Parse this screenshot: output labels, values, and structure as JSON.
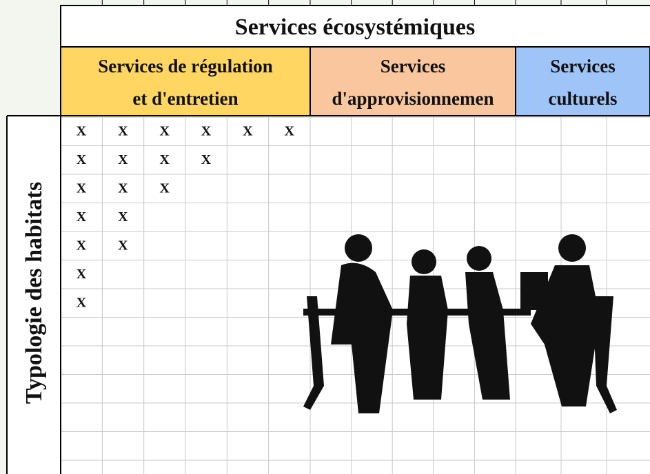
{
  "header": {
    "title": "Services écosystémiques"
  },
  "groups": [
    {
      "lines": [
        "Services de régulation",
        "et d'entretien"
      ],
      "color": "#ffd662"
    },
    {
      "lines": [
        "Services",
        "d'approvisionnemen"
      ],
      "color": "#f9c69e"
    },
    {
      "lines": [
        "Services",
        "culturels"
      ],
      "color": "#9fc5f8"
    }
  ],
  "row_header": "Typologie des habitats",
  "table": {
    "rows": [
      [
        "X",
        "X",
        "X",
        "X",
        "X",
        "X"
      ],
      [
        "X",
        "X",
        "X",
        "X"
      ],
      [
        "X",
        "X",
        "X"
      ],
      [
        "X",
        "X"
      ],
      [
        "X",
        "X"
      ],
      [
        "X"
      ],
      [
        "X"
      ]
    ]
  }
}
